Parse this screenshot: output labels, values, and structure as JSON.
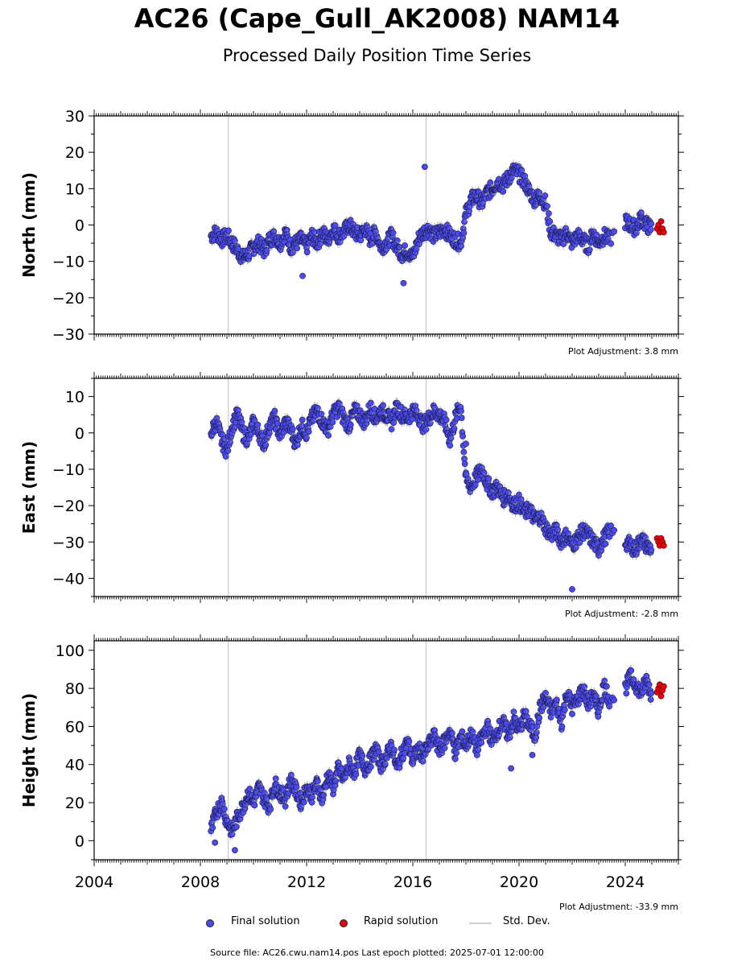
{
  "title": "AC26 (Cape_Gull_AK2008) NAM14",
  "subtitle": "Processed Daily Position Time Series",
  "legend": {
    "final": "Final solution",
    "rapid": "Rapid solution",
    "std": "Std. Dev."
  },
  "source_text": "Source file: AC26.cwu.nam14.pos  Last epoch plotted: 2025-07-01 12:00:00",
  "colors": {
    "final": "#4a4af0",
    "rapid": "#e8000b",
    "std": "#a0a0a0",
    "vline": "#d0d0d0"
  },
  "chart_data": [
    {
      "type": "scatter",
      "ylabel": "North (mm)",
      "adjustment": "Plot Adjustment: 3.8 mm",
      "xlim": [
        2004,
        2026
      ],
      "ylim": [
        -30,
        30
      ],
      "yticks": [
        -30,
        -20,
        -10,
        0,
        10,
        20,
        30
      ],
      "vlines": [
        2009.05,
        2016.5
      ],
      "final_x": [
        2008.4,
        2008.6,
        2008.8,
        2009.0,
        2009.2,
        2009.4,
        2009.6,
        2009.8,
        2010.0,
        2010.2,
        2010.4,
        2010.6,
        2010.8,
        2011.0,
        2011.2,
        2011.4,
        2011.6,
        2011.8,
        2012.0,
        2012.2,
        2012.4,
        2012.6,
        2012.8,
        2013.0,
        2013.2,
        2013.4,
        2013.6,
        2013.8,
        2014.0,
        2014.2,
        2014.4,
        2014.6,
        2014.8,
        2015.0,
        2015.2,
        2015.4,
        2015.6,
        2015.8,
        2016.0,
        2016.2,
        2016.4,
        2016.6,
        2016.8,
        2017.0,
        2017.2,
        2017.4,
        2017.6,
        2017.8,
        2018.0,
        2018.2,
        2018.4,
        2018.6,
        2018.8,
        2019.0,
        2019.2,
        2019.4,
        2019.6,
        2019.8,
        2020.0,
        2020.2,
        2020.4,
        2020.6,
        2020.8,
        2021.0,
        2021.2,
        2021.4,
        2021.6,
        2021.8,
        2022.0,
        2022.2,
        2022.4,
        2022.6,
        2022.8,
        2023.0,
        2023.2,
        2023.4,
        2024.0,
        2024.2,
        2024.4,
        2024.6,
        2024.8,
        2025.0
      ],
      "final_y": [
        -3,
        -2,
        -4,
        -3,
        -5,
        -7,
        -9,
        -8,
        -6,
        -5,
        -7,
        -4,
        -3,
        -5,
        -2,
        -6,
        -5,
        -4,
        -6,
        -3,
        -5,
        -2,
        -4,
        -1,
        -3,
        -2,
        0,
        -2,
        -3,
        -1,
        -4,
        -2,
        -6,
        -5,
        -3,
        -6,
        -8,
        -7,
        -9,
        -4,
        -2,
        -1,
        -3,
        -2,
        -1,
        -3,
        -4,
        -5,
        3,
        7,
        8,
        6,
        9,
        10,
        12,
        11,
        13,
        15,
        14,
        12,
        9,
        7,
        8,
        6,
        -2,
        -3,
        -4,
        -2,
        -5,
        -3,
        -4,
        -6,
        -2,
        -5,
        -3,
        -4,
        1,
        0,
        -1,
        2,
        0,
        -1
      ],
      "rapid_x": [
        2025.2,
        2025.25,
        2025.3,
        2025.35,
        2025.4,
        2025.45
      ],
      "rapid_y": [
        -1,
        0,
        -2,
        1,
        -1,
        -2
      ],
      "outliers_x": [
        2016.45,
        2011.85,
        2015.65
      ],
      "outliers_y": [
        16,
        -14,
        -16
      ]
    },
    {
      "type": "scatter",
      "ylabel": "East (mm)",
      "adjustment": "Plot Adjustment: -2.8 mm",
      "xlim": [
        2004,
        2026
      ],
      "ylim": [
        -45,
        15
      ],
      "yticks": [
        -40,
        -30,
        -20,
        -10,
        0,
        10
      ],
      "vlines": [
        2009.05,
        2016.5
      ],
      "final_x": [
        2008.4,
        2008.6,
        2008.8,
        2009.0,
        2009.2,
        2009.4,
        2009.6,
        2009.8,
        2010.0,
        2010.2,
        2010.4,
        2010.6,
        2010.8,
        2011.0,
        2011.2,
        2011.4,
        2011.6,
        2011.8,
        2012.0,
        2012.2,
        2012.4,
        2012.6,
        2012.8,
        2013.0,
        2013.2,
        2013.4,
        2013.6,
        2013.8,
        2014.0,
        2014.2,
        2014.4,
        2014.6,
        2014.8,
        2015.0,
        2015.2,
        2015.4,
        2015.6,
        2015.8,
        2016.0,
        2016.2,
        2016.4,
        2016.6,
        2016.8,
        2017.0,
        2017.2,
        2017.4,
        2017.6,
        2017.8,
        2018.0,
        2018.2,
        2018.4,
        2018.6,
        2018.8,
        2019.0,
        2019.2,
        2019.4,
        2019.6,
        2019.8,
        2020.0,
        2020.2,
        2020.4,
        2020.6,
        2020.8,
        2021.0,
        2021.2,
        2021.4,
        2021.6,
        2021.8,
        2022.0,
        2022.2,
        2022.4,
        2022.6,
        2022.8,
        2023.0,
        2023.2,
        2023.4,
        2024.0,
        2024.2,
        2024.4,
        2024.6,
        2024.8,
        2025.0
      ],
      "final_y": [
        0,
        3,
        -2,
        -5,
        2,
        5,
        0,
        -2,
        3,
        0,
        -3,
        2,
        4,
        -1,
        3,
        1,
        -3,
        2,
        0,
        4,
        6,
        3,
        1,
        5,
        7,
        4,
        2,
        6,
        5,
        3,
        7,
        4,
        6,
        5,
        3,
        7,
        5,
        4,
        6,
        5,
        2,
        4,
        6,
        5,
        3,
        -2,
        4,
        8,
        -13,
        -15,
        -12,
        -10,
        -14,
        -16,
        -15,
        -18,
        -17,
        -20,
        -19,
        -22,
        -21,
        -24,
        -23,
        -26,
        -28,
        -27,
        -30,
        -28,
        -31,
        -29,
        -27,
        -28,
        -30,
        -32,
        -29,
        -27,
        -30,
        -31,
        -32,
        -29,
        -31,
        -32
      ],
      "rapid_x": [
        2025.2,
        2025.25,
        2025.3,
        2025.35,
        2025.4,
        2025.45
      ],
      "rapid_y": [
        -29,
        -30,
        -31,
        -29,
        -30,
        -31
      ],
      "outliers_x": [
        2022.0,
        2018.0
      ],
      "outliers_y": [
        -43,
        -3
      ]
    },
    {
      "type": "scatter",
      "ylabel": "Height (mm)",
      "adjustment": "Plot Adjustment: -33.9 mm",
      "xlim": [
        2004,
        2026
      ],
      "ylim": [
        -10,
        105
      ],
      "yticks": [
        0,
        20,
        40,
        60,
        80,
        100
      ],
      "xticks": [
        2004,
        2008,
        2012,
        2016,
        2020,
        2024
      ],
      "vlines": [
        2009.05,
        2016.5
      ],
      "final_x": [
        2008.4,
        2008.6,
        2008.8,
        2009.0,
        2009.2,
        2009.4,
        2009.6,
        2009.8,
        2010.0,
        2010.2,
        2010.4,
        2010.6,
        2010.8,
        2011.0,
        2011.2,
        2011.4,
        2011.6,
        2011.8,
        2012.0,
        2012.2,
        2012.4,
        2012.6,
        2012.8,
        2013.0,
        2013.2,
        2013.4,
        2013.6,
        2013.8,
        2014.0,
        2014.2,
        2014.4,
        2014.6,
        2014.8,
        2015.0,
        2015.2,
        2015.4,
        2015.6,
        2015.8,
        2016.0,
        2016.2,
        2016.4,
        2016.6,
        2016.8,
        2017.0,
        2017.2,
        2017.4,
        2017.6,
        2017.8,
        2018.0,
        2018.2,
        2018.4,
        2018.6,
        2018.8,
        2019.0,
        2019.2,
        2019.4,
        2019.6,
        2019.8,
        2020.0,
        2020.2,
        2020.4,
        2020.6,
        2020.8,
        2021.0,
        2021.2,
        2021.4,
        2021.6,
        2021.8,
        2022.0,
        2022.2,
        2022.4,
        2022.6,
        2022.8,
        2023.0,
        2023.2,
        2023.4,
        2024.0,
        2024.2,
        2024.4,
        2024.6,
        2024.8,
        2025.0
      ],
      "final_y": [
        5,
        15,
        20,
        10,
        5,
        12,
        18,
        25,
        20,
        28,
        22,
        18,
        30,
        25,
        22,
        32,
        26,
        20,
        28,
        24,
        30,
        22,
        35,
        28,
        38,
        32,
        40,
        36,
        45,
        38,
        42,
        48,
        40,
        44,
        50,
        38,
        46,
        52,
        42,
        48,
        45,
        50,
        55,
        48,
        52,
        58,
        46,
        55,
        50,
        56,
        48,
        54,
        60,
        52,
        58,
        62,
        55,
        64,
        58,
        66,
        60,
        55,
        70,
        75,
        68,
        72,
        62,
        78,
        70,
        74,
        80,
        72,
        76,
        68,
        82,
        74,
        80,
        86,
        82,
        78,
        84,
        76
      ],
      "rapid_x": [
        2025.2,
        2025.25,
        2025.3,
        2025.35,
        2025.4,
        2025.45
      ],
      "rapid_y": [
        78,
        80,
        82,
        76,
        79,
        81
      ],
      "outliers_x": [
        2008.55,
        2009.3,
        2019.7,
        2020.5
      ],
      "outliers_y": [
        -1,
        -5,
        38,
        45
      ]
    }
  ]
}
